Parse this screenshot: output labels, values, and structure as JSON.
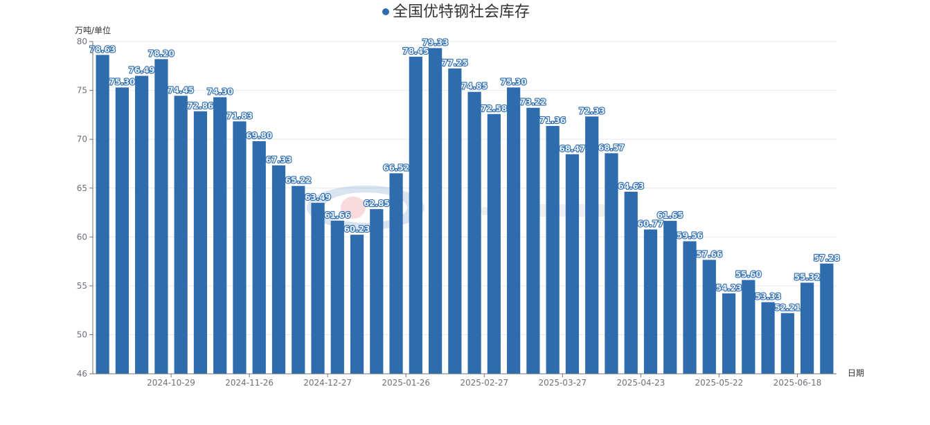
{
  "chart_data": {
    "type": "bar",
    "title": "全国优特钢社会库存",
    "ylabel": "万吨/单位",
    "xlabel": "日期",
    "ylim": [
      46,
      80
    ],
    "yticks": [
      46,
      50,
      55,
      60,
      65,
      70,
      75,
      80
    ],
    "grid": true,
    "legend": "top",
    "colors": {
      "bar": "#2e6cad",
      "label_fill": "#e8f0fb",
      "label_stroke": "#2e6cad",
      "grid": "#e4e8f0",
      "axis": "#6e7079"
    },
    "values": [
      78.63,
      75.3,
      76.49,
      78.2,
      74.45,
      72.86,
      74.3,
      71.83,
      69.8,
      67.33,
      65.22,
      63.49,
      61.66,
      60.23,
      62.85,
      66.52,
      78.45,
      79.33,
      77.25,
      74.85,
      72.58,
      75.3,
      73.22,
      71.36,
      68.47,
      72.33,
      68.57,
      64.63,
      60.77,
      61.65,
      59.56,
      57.66,
      54.23,
      55.6,
      53.33,
      52.21,
      55.32,
      57.28
    ],
    "x_ticks": [
      {
        "index": 3,
        "label": "2024-10-29"
      },
      {
        "index": 7,
        "label": "2024-11-26"
      },
      {
        "index": 11,
        "label": "2024-12-27"
      },
      {
        "index": 15,
        "label": "2025-01-26"
      },
      {
        "index": 19,
        "label": "2025-02-27"
      },
      {
        "index": 23,
        "label": "2025-03-27"
      },
      {
        "index": 27,
        "label": "2025-04-23"
      },
      {
        "index": 31,
        "label": "2025-05-22"
      },
      {
        "index": 35,
        "label": "2025-06-18"
      }
    ]
  }
}
